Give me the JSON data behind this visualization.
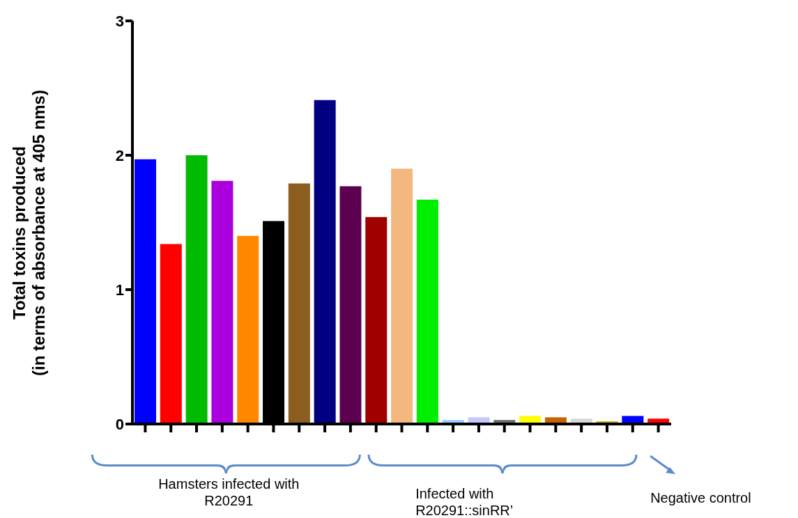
{
  "chart_data": {
    "type": "bar",
    "ylabel": "Total toxins produced\n(in terms of absorbance at 405 nms)",
    "categories": [
      null,
      null,
      null,
      null,
      null,
      null,
      null,
      null,
      null,
      null,
      null,
      null,
      null,
      null,
      null,
      null,
      null,
      null,
      null,
      null,
      null
    ],
    "values": [
      1.97,
      1.34,
      2.0,
      1.81,
      1.4,
      1.51,
      1.79,
      2.41,
      1.77,
      1.54,
      1.9,
      1.67,
      0.03,
      0.05,
      0.03,
      0.06,
      0.05,
      0.04,
      0.02,
      0.06,
      0.04
    ],
    "colors": [
      "#0000ff",
      "#ff0000",
      "#00bb00",
      "#aa00dd",
      "#ff8800",
      "#000000",
      "#8b5e20",
      "#000080",
      "#5e0050",
      "#a00000",
      "#f2b880",
      "#00ee00",
      "#99ccff",
      "#c8c8ff",
      "#6e6e6e",
      "#ffff00",
      "#c86400",
      "#d8d8d8",
      "#c0b000",
      "#0000ff",
      "#ff0000"
    ],
    "ylim": [
      0,
      3
    ],
    "yticks": [
      0,
      1,
      2,
      3
    ],
    "grid": false,
    "legend": false,
    "annotations": [
      "Hamsters infected with\nR20291",
      "Infected with\nR20291::sinRR’",
      "Negative control"
    ]
  }
}
